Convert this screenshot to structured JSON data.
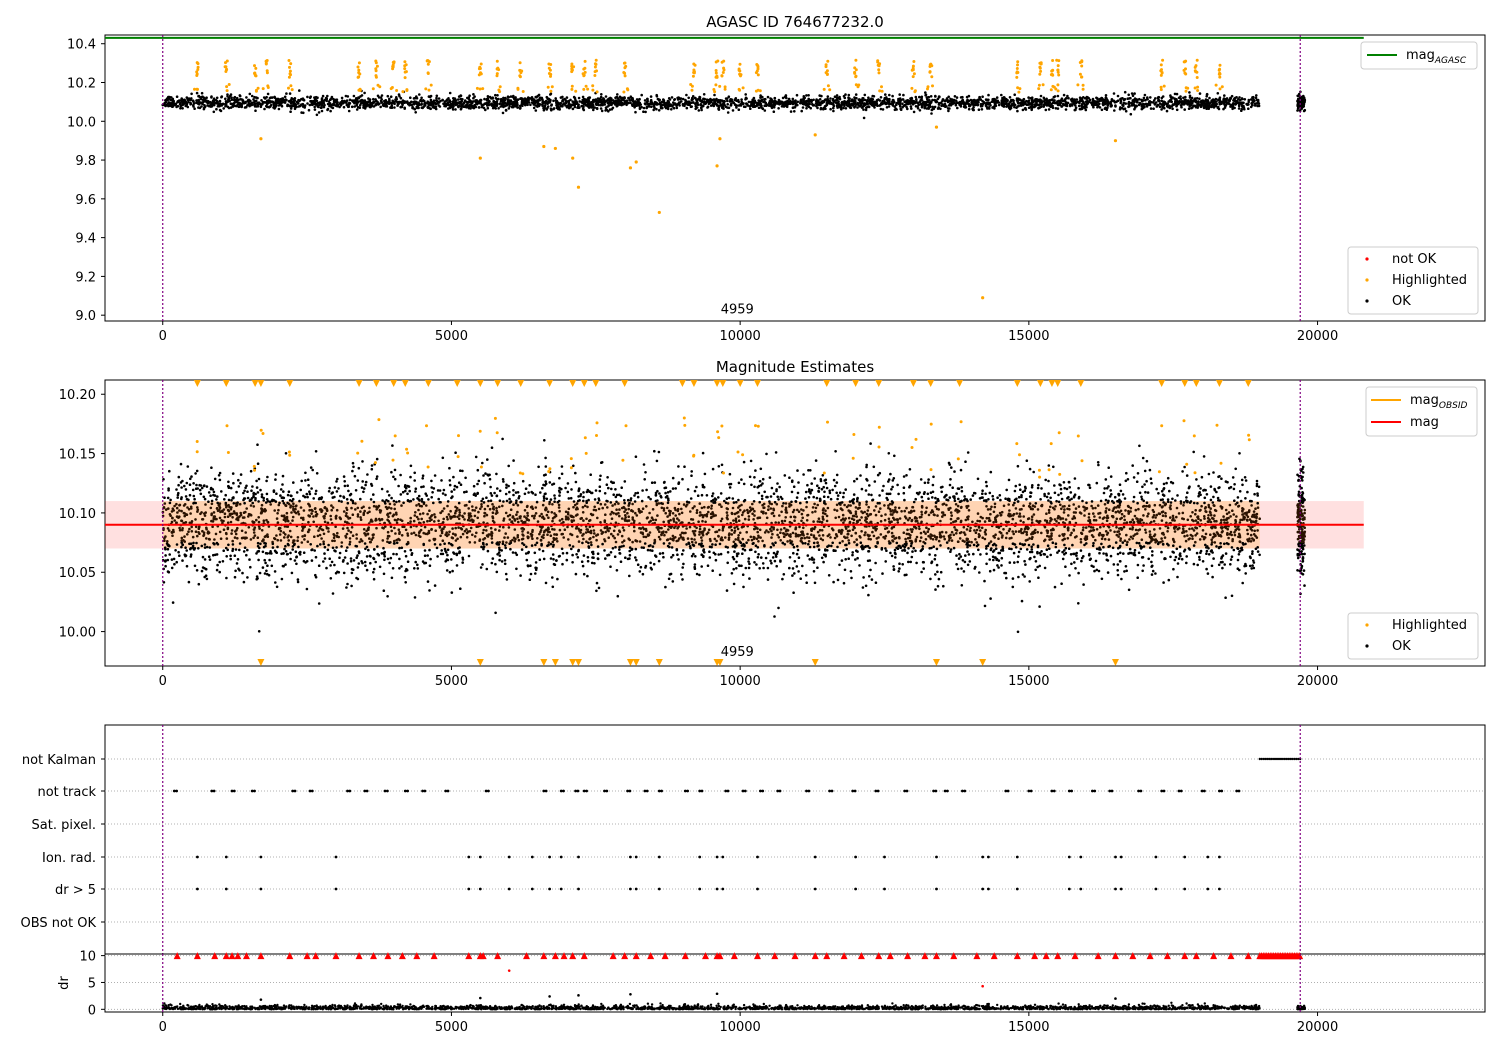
{
  "chart_data": [
    {
      "type": "scatter",
      "title": "AGASC ID 764677232.0",
      "xlim": [
        -1000,
        22900
      ],
      "ylim": [
        8.97,
        10.445
      ],
      "xticks": [
        0,
        5000,
        10000,
        15000,
        20000
      ],
      "yticks": [
        9.0,
        9.2,
        9.4,
        9.6,
        9.8,
        10.0,
        10.2,
        10.4
      ],
      "ytick_labels": [
        "9.0",
        "9.2",
        "9.4",
        "9.6",
        "9.8",
        "10.0",
        "10.2",
        "10.4"
      ],
      "vlines": [
        0,
        19700
      ],
      "annotation": {
        "text": "4959",
        "x": 9950,
        "y": 9.03
      },
      "mag_agasc": {
        "value": 10.43,
        "xrange": [
          -1000,
          20800
        ],
        "color": "#008000"
      },
      "legend_top": [
        {
          "label_main": "mag",
          "label_sub": "AGASC",
          "color": "#008000",
          "style": "line"
        }
      ],
      "legend_bottom": [
        {
          "label": "not OK",
          "color": "#ff0000",
          "style": "dot"
        },
        {
          "label": "Highlighted",
          "color": "#ffa500",
          "style": "dot"
        },
        {
          "label": "OK",
          "color": "#000000",
          "style": "dot"
        }
      ],
      "ok_band": {
        "x_segments": [
          [
            0,
            19000
          ],
          [
            19650,
            19780
          ]
        ],
        "center": 10.095,
        "spread": 0.035
      },
      "highlight_clusters_x": [
        600,
        1100,
        1600,
        1800,
        2200,
        3400,
        3700,
        4000,
        4200,
        4600,
        5500,
        5800,
        6200,
        6700,
        7100,
        7300,
        7500,
        8000,
        9200,
        9600,
        9700,
        10000,
        10300,
        11500,
        12000,
        12400,
        13000,
        13300,
        14800,
        15200,
        15400,
        15500,
        15900,
        17300,
        17700,
        17900,
        18300
      ],
      "highlight_cluster_mag": 10.27,
      "highlight_outliers": [
        [
          1700,
          9.91
        ],
        [
          5500,
          9.81
        ],
        [
          6600,
          9.87
        ],
        [
          6800,
          9.86
        ],
        [
          7100,
          9.81
        ],
        [
          7200,
          9.66
        ],
        [
          8100,
          9.76
        ],
        [
          8200,
          9.79
        ],
        [
          8600,
          9.53
        ],
        [
          9600,
          9.77
        ],
        [
          9650,
          9.91
        ],
        [
          11300,
          9.93
        ],
        [
          13400,
          9.97
        ],
        [
          14200,
          9.09
        ],
        [
          16500,
          9.9
        ]
      ]
    },
    {
      "type": "scatter",
      "title": "Magnitude Estimates",
      "xlim": [
        -1000,
        22900
      ],
      "ylim": [
        9.971,
        10.212
      ],
      "xticks": [
        0,
        5000,
        10000,
        15000,
        20000
      ],
      "yticks": [
        10.0,
        10.05,
        10.1,
        10.15,
        10.2
      ],
      "ytick_labels": [
        "10.00",
        "10.05",
        "10.10",
        "10.15",
        "10.20"
      ],
      "vlines": [
        0,
        19700
      ],
      "annotation": {
        "text": "4959",
        "x": 9950,
        "y": 9.98
      },
      "mag": {
        "value": 10.09,
        "band": [
          10.07,
          10.11
        ],
        "xrange": [
          -1000,
          20800
        ],
        "color": "#ff0000"
      },
      "mag_obsid_band": {
        "range": [
          10.07,
          10.11
        ],
        "xrange": [
          0,
          19000
        ],
        "color": "#ffa500"
      },
      "legend_top": [
        {
          "label_main": "mag",
          "label_sub": "OBSID",
          "color": "#ffa500",
          "style": "line"
        },
        {
          "label_main": "mag",
          "label_sub": "",
          "color": "#ff0000",
          "style": "line"
        }
      ],
      "legend_bottom": [
        {
          "label": "Highlighted",
          "color": "#ffa500",
          "style": "dot"
        },
        {
          "label": "OK",
          "color": "#000000",
          "style": "dot"
        }
      ],
      "ok_band": {
        "x_segments": [
          [
            0,
            19000
          ],
          [
            19650,
            19780
          ]
        ],
        "center": 10.09,
        "spread": 0.022
      },
      "highlight_top_triangles_x": [
        600,
        1100,
        1600,
        1700,
        2200,
        3400,
        3700,
        4000,
        4200,
        4600,
        5100,
        5500,
        5800,
        6200,
        6700,
        7100,
        7300,
        7500,
        8000,
        9000,
        9200,
        9600,
        9700,
        10000,
        10300,
        11500,
        12000,
        12400,
        13000,
        13300,
        13800,
        14800,
        15200,
        15400,
        15500,
        15900,
        17300,
        17700,
        17900,
        18300,
        18800
      ],
      "highlight_bottom_triangles_x": [
        1700,
        5500,
        6600,
        6800,
        7100,
        7200,
        8100,
        8200,
        8600,
        9600,
        9650,
        11300,
        13400,
        14200,
        16500
      ]
    },
    {
      "type": "scatter",
      "title": "",
      "xlim": [
        -1000,
        22900
      ],
      "xticks": [
        0,
        5000,
        10000,
        15000,
        20000
      ],
      "vlines": [
        0,
        19700
      ],
      "flag_rows": [
        "not Kalman",
        "not track",
        "Sat. pixel.",
        "Ion. rad.",
        "dr > 5",
        "OBS not OK"
      ],
      "not_kalman_range": [
        19000,
        19700
      ],
      "not_track_x": [
        200,
        850,
        1200,
        1550,
        2250,
        2550,
        3200,
        3500,
        3850,
        4200,
        4500,
        4900,
        5600,
        6600,
        6900,
        7150,
        7300,
        7650,
        8050,
        8350,
        8600,
        9050,
        9300,
        9750,
        10050,
        10350,
        10650,
        11150,
        11550,
        11950,
        12350,
        12850,
        13350,
        13550,
        13850,
        14600,
        15000,
        15400,
        15700,
        16100,
        16400,
        16900,
        17300,
        17600,
        18000,
        18300,
        18600
      ],
      "ion_rad_x": [
        600,
        1100,
        1700,
        3000,
        5300,
        5500,
        6000,
        6400,
        6700,
        6900,
        7200,
        8100,
        8200,
        8600,
        9300,
        9600,
        9700,
        10300,
        11300,
        12000,
        12500,
        13400,
        14200,
        14300,
        14800,
        15700,
        15900,
        16500,
        16600,
        17200,
        17700,
        18100,
        18300
      ],
      "dr_gt5_x": [
        600,
        1100,
        1700,
        3000,
        5300,
        5500,
        6000,
        6400,
        6700,
        6900,
        7200,
        8100,
        8200,
        8600,
        9300,
        9600,
        9700,
        10300,
        11300,
        12000,
        12500,
        13400,
        14200,
        14300,
        14800,
        15700,
        15900,
        16500,
        16600,
        17200,
        17700,
        18100,
        18300
      ],
      "dr_ylabel": "dr",
      "dr_ylim": [
        -0.5,
        10.3
      ],
      "dr_yticks": [
        0,
        5,
        10
      ],
      "dr_red_at_10_x": [
        250,
        600,
        900,
        1100,
        1200,
        1300,
        1450,
        1700,
        2200,
        2500,
        2650,
        3000,
        3400,
        3650,
        3900,
        4150,
        4400,
        4700,
        5300,
        5500,
        5550,
        5800,
        6300,
        6600,
        6800,
        6950,
        7100,
        7300,
        7800,
        8000,
        8200,
        8450,
        8700,
        9050,
        9400,
        9600,
        9650,
        9900,
        10300,
        10600,
        10950,
        11300,
        11500,
        11800,
        12100,
        12400,
        12600,
        12900,
        13200,
        13400,
        13700,
        14100,
        14400,
        14800,
        15100,
        15300,
        15500,
        15800,
        16200,
        16500,
        16800,
        17100,
        17400,
        17700,
        17900,
        18200,
        18500,
        18800
      ],
      "dr_red_extra": [
        [
          6000,
          7.2
        ],
        [
          14200,
          4.3
        ]
      ],
      "dr_black_spikes": [
        [
          1700,
          1.8
        ],
        [
          5500,
          2.1
        ],
        [
          6700,
          2.4
        ],
        [
          7200,
          2.6
        ],
        [
          8100,
          2.8
        ],
        [
          9600,
          2.9
        ],
        [
          16500,
          2.0
        ]
      ],
      "dr_red_dense_range": [
        19000,
        19700
      ]
    }
  ]
}
